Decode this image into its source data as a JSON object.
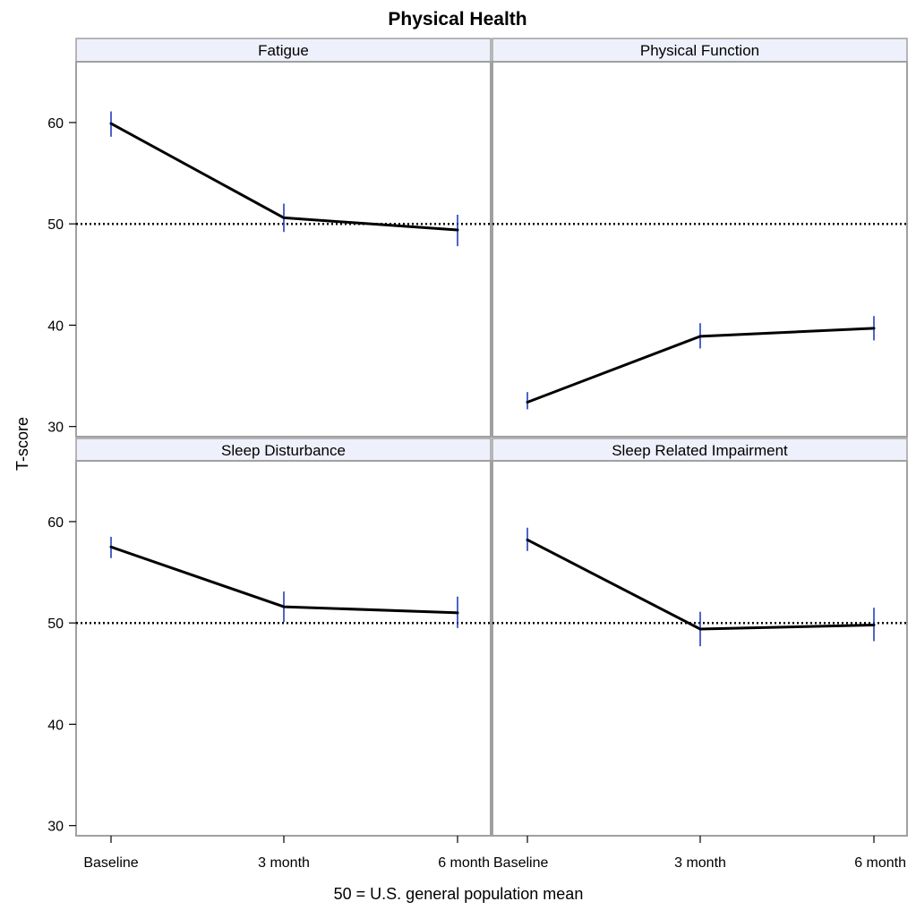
{
  "chart_data": {
    "type": "line",
    "title": "Physical Health",
    "xlabel": "50 = U.S. general population mean",
    "ylabel": "T-score",
    "categories": [
      "Baseline",
      "3 month",
      "6 month"
    ],
    "ylim": [
      29,
      66
    ],
    "yticks": [
      30,
      40,
      50,
      60
    ],
    "reference_line": {
      "y": 50,
      "style": "dotted"
    },
    "grid": false,
    "colors": {
      "line": "#000000",
      "error_bar": "#1f3fbf",
      "strip": "#eef0fb",
      "frame": "#a0a0a0"
    },
    "panels": [
      {
        "label": "Fatigue",
        "values": [
          59.9,
          50.6,
          49.4
        ],
        "lower": [
          58.6,
          49.2,
          47.8
        ],
        "upper": [
          61.1,
          52.0,
          50.9
        ]
      },
      {
        "label": "Physical Function",
        "values": [
          32.4,
          38.9,
          39.7
        ],
        "lower": [
          31.7,
          37.7,
          38.5
        ],
        "upper": [
          33.4,
          40.2,
          40.9
        ]
      },
      {
        "label": "Sleep Disturbance",
        "values": [
          57.5,
          51.6,
          51.0
        ],
        "lower": [
          56.4,
          50.1,
          49.5
        ],
        "upper": [
          58.5,
          53.1,
          52.6
        ]
      },
      {
        "label": "Sleep Related Impairment",
        "values": [
          58.2,
          49.4,
          49.8
        ],
        "lower": [
          57.1,
          47.7,
          48.2
        ],
        "upper": [
          59.4,
          51.1,
          51.5
        ]
      }
    ]
  }
}
